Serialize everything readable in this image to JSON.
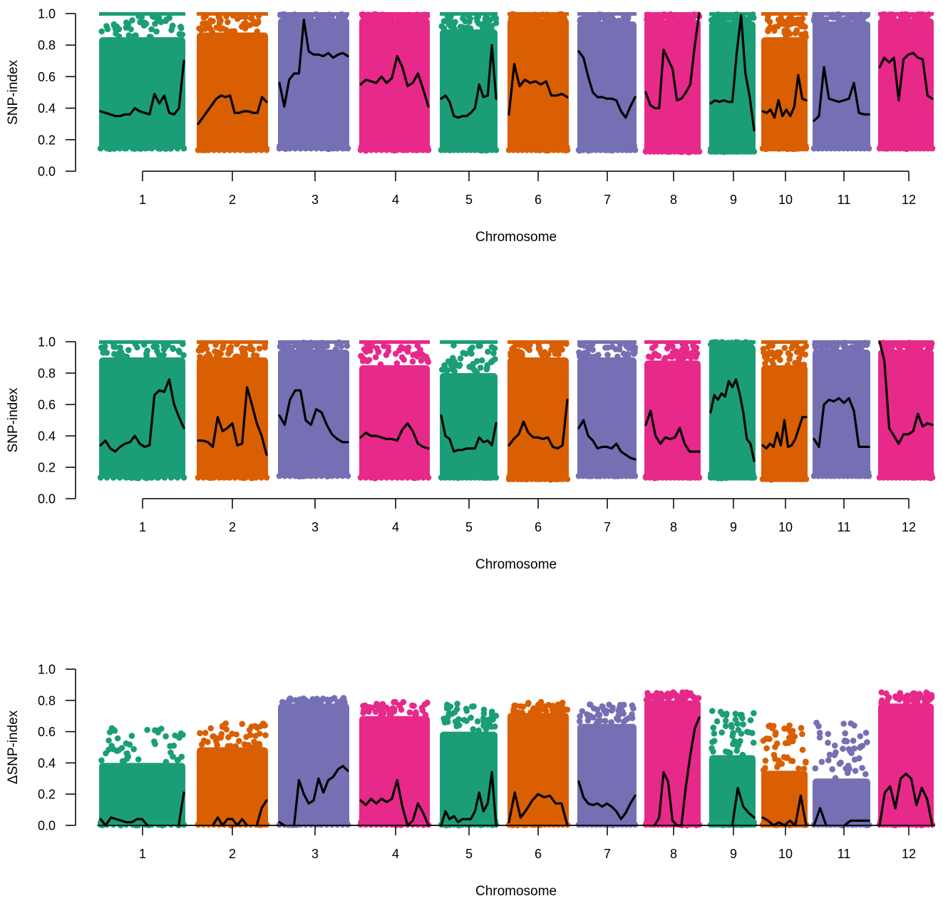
{
  "chart_data": [
    {
      "type": "scatter",
      "title": "",
      "xlabel": "Chromosome",
      "ylabel": "SNP-index",
      "ylim": [
        0,
        1
      ],
      "yticks": [
        "0.0",
        "0.2",
        "0.4",
        "0.6",
        "0.8",
        "1.0"
      ],
      "categories": [
        "1",
        "2",
        "3",
        "4",
        "5",
        "6",
        "7",
        "8",
        "9",
        "10",
        "11",
        "12"
      ],
      "colors": [
        "#1B9E77",
        "#D95F02",
        "#7570B3",
        "#E7298A"
      ],
      "grid": false,
      "legend": "none",
      "point_ranges": [
        {
          "chr": "1",
          "min": 0.14,
          "max": 1.0,
          "dense_top": 0.85
        },
        {
          "chr": "2",
          "min": 0.13,
          "max": 1.0,
          "dense_top": 0.88
        },
        {
          "chr": "3",
          "min": 0.14,
          "max": 1.0,
          "dense_top": 0.97
        },
        {
          "chr": "4",
          "min": 0.13,
          "max": 1.0,
          "dense_top": 0.97
        },
        {
          "chr": "5",
          "min": 0.13,
          "max": 1.0,
          "dense_top": 0.9
        },
        {
          "chr": "6",
          "min": 0.13,
          "max": 1.0,
          "dense_top": 0.97
        },
        {
          "chr": "7",
          "min": 0.13,
          "max": 1.0,
          "dense_top": 0.95
        },
        {
          "chr": "8",
          "min": 0.12,
          "max": 1.0,
          "dense_top": 0.96
        },
        {
          "chr": "9",
          "min": 0.12,
          "max": 1.0,
          "dense_top": 0.95
        },
        {
          "chr": "10",
          "min": 0.14,
          "max": 1.0,
          "dense_top": 0.85
        },
        {
          "chr": "11",
          "min": 0.14,
          "max": 1.0,
          "dense_top": 0.95
        },
        {
          "chr": "12",
          "min": 0.14,
          "max": 1.0,
          "dense_top": 0.97
        }
      ],
      "series": [
        {
          "chr": "1",
          "values": [
            0.38,
            0.37,
            0.36,
            0.35,
            0.35,
            0.36,
            0.36,
            0.4,
            0.38,
            0.37,
            0.36,
            0.49,
            0.43,
            0.48,
            0.37,
            0.36,
            0.4,
            0.7
          ]
        },
        {
          "chr": "2",
          "values": [
            0.3,
            0.34,
            0.38,
            0.42,
            0.46,
            0.48,
            0.47,
            0.48,
            0.37,
            0.37,
            0.38,
            0.38,
            0.37,
            0.37,
            0.47,
            0.44
          ]
        },
        {
          "chr": "3",
          "values": [
            0.56,
            0.41,
            0.58,
            0.62,
            0.62,
            0.96,
            0.76,
            0.74,
            0.74,
            0.73,
            0.75,
            0.72,
            0.74,
            0.75,
            0.73
          ]
        },
        {
          "chr": "4",
          "values": [
            0.55,
            0.58,
            0.57,
            0.56,
            0.6,
            0.56,
            0.59,
            0.73,
            0.66,
            0.54,
            0.56,
            0.62,
            0.52,
            0.41
          ]
        },
        {
          "chr": "5",
          "values": [
            0.46,
            0.48,
            0.44,
            0.35,
            0.34,
            0.35,
            0.35,
            0.37,
            0.4,
            0.55,
            0.47,
            0.48,
            0.8,
            0.46
          ]
        },
        {
          "chr": "6",
          "values": [
            0.36,
            0.68,
            0.54,
            0.58,
            0.56,
            0.57,
            0.55,
            0.57,
            0.48,
            0.48,
            0.49,
            0.47
          ]
        },
        {
          "chr": "7",
          "values": [
            0.76,
            0.72,
            0.6,
            0.5,
            0.47,
            0.47,
            0.46,
            0.46,
            0.45,
            0.38,
            0.34,
            0.41,
            0.47
          ]
        },
        {
          "chr": "8",
          "values": [
            0.5,
            0.42,
            0.4,
            0.4,
            0.77,
            0.71,
            0.65,
            0.45,
            0.46,
            0.5,
            0.55,
            0.8,
            1.0
          ]
        },
        {
          "chr": "9",
          "values": [
            0.43,
            0.45,
            0.44,
            0.45,
            0.44,
            0.44,
            0.75,
            0.99,
            0.62,
            0.47,
            0.26
          ]
        },
        {
          "chr": "10",
          "values": [
            0.38,
            0.37,
            0.39,
            0.34,
            0.45,
            0.35,
            0.39,
            0.35,
            0.41,
            0.61,
            0.46,
            0.45
          ]
        },
        {
          "chr": "11",
          "values": [
            0.32,
            0.35,
            0.66,
            0.46,
            0.45,
            0.44,
            0.45,
            0.46,
            0.56,
            0.37,
            0.36,
            0.36
          ]
        },
        {
          "chr": "12",
          "values": [
            0.66,
            0.72,
            0.69,
            0.72,
            0.45,
            0.71,
            0.74,
            0.75,
            0.72,
            0.71,
            0.48,
            0.46
          ]
        }
      ]
    },
    {
      "type": "scatter",
      "title": "",
      "xlabel": "Chromosome",
      "ylabel": "SNP-index",
      "ylim": [
        0,
        1
      ],
      "yticks": [
        "0.0",
        "0.2",
        "0.4",
        "0.6",
        "0.8",
        "1.0"
      ],
      "categories": [
        "1",
        "2",
        "3",
        "4",
        "5",
        "6",
        "7",
        "8",
        "9",
        "10",
        "11",
        "12"
      ],
      "colors": [
        "#1B9E77",
        "#D95F02",
        "#7570B3",
        "#E7298A"
      ],
      "grid": false,
      "legend": "none",
      "point_ranges": [
        {
          "chr": "1",
          "min": 0.13,
          "max": 1.0,
          "dense_top": 0.9
        },
        {
          "chr": "2",
          "min": 0.13,
          "max": 1.0,
          "dense_top": 0.9
        },
        {
          "chr": "3",
          "min": 0.14,
          "max": 1.0,
          "dense_top": 0.95
        },
        {
          "chr": "4",
          "min": 0.13,
          "max": 1.0,
          "dense_top": 0.85
        },
        {
          "chr": "5",
          "min": 0.13,
          "max": 1.0,
          "dense_top": 0.8
        },
        {
          "chr": "6",
          "min": 0.12,
          "max": 1.0,
          "dense_top": 0.9
        },
        {
          "chr": "7",
          "min": 0.14,
          "max": 1.0,
          "dense_top": 0.9
        },
        {
          "chr": "8",
          "min": 0.13,
          "max": 1.0,
          "dense_top": 0.88
        },
        {
          "chr": "9",
          "min": 0.13,
          "max": 1.0,
          "dense_top": 0.98
        },
        {
          "chr": "10",
          "min": 0.12,
          "max": 1.0,
          "dense_top": 0.85
        },
        {
          "chr": "11",
          "min": 0.14,
          "max": 1.0,
          "dense_top": 0.95
        },
        {
          "chr": "12",
          "min": 0.13,
          "max": 1.0,
          "dense_top": 0.95
        }
      ],
      "series": [
        {
          "chr": "1",
          "values": [
            0.34,
            0.37,
            0.32,
            0.3,
            0.33,
            0.35,
            0.36,
            0.4,
            0.35,
            0.33,
            0.34,
            0.66,
            0.69,
            0.68,
            0.76,
            0.6,
            0.52,
            0.45
          ]
        },
        {
          "chr": "2",
          "values": [
            0.37,
            0.37,
            0.36,
            0.33,
            0.52,
            0.43,
            0.45,
            0.48,
            0.34,
            0.35,
            0.71,
            0.6,
            0.48,
            0.4,
            0.28
          ]
        },
        {
          "chr": "3",
          "values": [
            0.53,
            0.47,
            0.63,
            0.69,
            0.69,
            0.5,
            0.47,
            0.57,
            0.55,
            0.47,
            0.41,
            0.38,
            0.36,
            0.36
          ]
        },
        {
          "chr": "4",
          "values": [
            0.39,
            0.42,
            0.4,
            0.4,
            0.39,
            0.38,
            0.38,
            0.37,
            0.44,
            0.48,
            0.43,
            0.35,
            0.33,
            0.32
          ]
        },
        {
          "chr": "5",
          "values": [
            0.53,
            0.4,
            0.38,
            0.3,
            0.31,
            0.31,
            0.32,
            0.32,
            0.32,
            0.39,
            0.36,
            0.37,
            0.34,
            0.48
          ]
        },
        {
          "chr": "6",
          "values": [
            0.34,
            0.38,
            0.41,
            0.49,
            0.42,
            0.39,
            0.39,
            0.38,
            0.39,
            0.33,
            0.32,
            0.34,
            0.63
          ]
        },
        {
          "chr": "7",
          "values": [
            0.45,
            0.5,
            0.4,
            0.37,
            0.32,
            0.33,
            0.33,
            0.32,
            0.35,
            0.3,
            0.28,
            0.26,
            0.25
          ]
        },
        {
          "chr": "8",
          "values": [
            0.47,
            0.56,
            0.4,
            0.35,
            0.39,
            0.38,
            0.39,
            0.45,
            0.35,
            0.3,
            0.3,
            0.3
          ]
        },
        {
          "chr": "9",
          "values": [
            0.55,
            0.66,
            0.63,
            0.67,
            0.65,
            0.75,
            0.71,
            0.76,
            0.67,
            0.55,
            0.38,
            0.35,
            0.24
          ]
        },
        {
          "chr": "10",
          "values": [
            0.34,
            0.32,
            0.35,
            0.33,
            0.42,
            0.34,
            0.5,
            0.33,
            0.34,
            0.38,
            0.45,
            0.52,
            0.52
          ]
        },
        {
          "chr": "11",
          "values": [
            0.38,
            0.33,
            0.6,
            0.63,
            0.62,
            0.64,
            0.61,
            0.64,
            0.56,
            0.33,
            0.33,
            0.33
          ]
        },
        {
          "chr": "12",
          "values": [
            1.0,
            0.88,
            0.45,
            0.4,
            0.35,
            0.41,
            0.41,
            0.43,
            0.54,
            0.46,
            0.48,
            0.47
          ]
        }
      ]
    },
    {
      "type": "scatter",
      "title": "",
      "xlabel": "Chromosome",
      "ylabel": "ΔSNP-index",
      "ylim": [
        0,
        1
      ],
      "yticks": [
        "0.0",
        "0.2",
        "0.4",
        "0.6",
        "0.8",
        "1.0"
      ],
      "categories": [
        "1",
        "2",
        "3",
        "4",
        "5",
        "6",
        "7",
        "8",
        "9",
        "10",
        "11",
        "12"
      ],
      "colors": [
        "#1B9E77",
        "#D95F02",
        "#7570B3",
        "#E7298A"
      ],
      "grid": false,
      "legend": "none",
      "point_ranges": [
        {
          "chr": "1",
          "min": 0.0,
          "max": 0.65,
          "dense_top": 0.4
        },
        {
          "chr": "2",
          "min": 0.0,
          "max": 0.67,
          "dense_top": 0.5
        },
        {
          "chr": "3",
          "min": 0.0,
          "max": 0.82,
          "dense_top": 0.78
        },
        {
          "chr": "4",
          "min": 0.0,
          "max": 0.8,
          "dense_top": 0.7
        },
        {
          "chr": "5",
          "min": 0.0,
          "max": 0.8,
          "dense_top": 0.6
        },
        {
          "chr": "6",
          "min": 0.0,
          "max": 0.8,
          "dense_top": 0.72
        },
        {
          "chr": "7",
          "min": 0.0,
          "max": 0.79,
          "dense_top": 0.65
        },
        {
          "chr": "8",
          "min": 0.0,
          "max": 0.86,
          "dense_top": 0.8
        },
        {
          "chr": "9",
          "min": 0.0,
          "max": 0.78,
          "dense_top": 0.45
        },
        {
          "chr": "10",
          "min": 0.0,
          "max": 0.68,
          "dense_top": 0.35
        },
        {
          "chr": "11",
          "min": 0.0,
          "max": 0.71,
          "dense_top": 0.3
        },
        {
          "chr": "12",
          "min": 0.0,
          "max": 0.86,
          "dense_top": 0.78
        }
      ],
      "series": [
        {
          "chr": "1",
          "values": [
            0.04,
            0.0,
            0.05,
            0.04,
            0.03,
            0.02,
            0.02,
            0.04,
            0.04,
            0.0,
            null,
            null,
            null,
            null,
            null,
            0.0,
            0.21
          ]
        },
        {
          "chr": "2",
          "values": [
            null,
            null,
            null,
            0.0,
            0.05,
            0.0,
            0.04,
            0.04,
            0.0,
            0.04,
            0.0,
            null,
            0.0,
            0.11,
            0.16
          ]
        },
        {
          "chr": "3",
          "values": [
            0.02,
            0.0,
            null,
            0.0,
            0.29,
            0.2,
            0.14,
            0.16,
            0.3,
            0.21,
            0.29,
            0.31,
            0.36,
            0.38,
            0.35
          ]
        },
        {
          "chr": "4",
          "values": [
            0.16,
            0.13,
            0.17,
            0.14,
            0.17,
            0.15,
            0.17,
            0.29,
            0.12,
            0.0,
            0.03,
            0.14,
            0.08,
            0.0
          ]
        },
        {
          "chr": "5",
          "values": [
            0.0,
            0.09,
            0.04,
            0.06,
            0.02,
            0.04,
            0.04,
            0.04,
            0.09,
            0.21,
            0.09,
            0.14,
            0.34,
            0.0
          ]
        },
        {
          "chr": "6",
          "values": [
            0.02,
            0.21,
            0.05,
            0.1,
            0.16,
            0.2,
            0.18,
            0.19,
            0.14,
            0.14,
            0.0
          ]
        },
        {
          "chr": "7",
          "values": [
            0.28,
            0.18,
            0.14,
            0.13,
            0.14,
            0.12,
            0.14,
            0.12,
            0.09,
            0.04,
            0.08,
            0.14,
            0.19
          ]
        },
        {
          "chr": "8",
          "values": [
            0.07,
            null,
            0.0,
            0.05,
            0.34,
            0.28,
            0.03,
            0.0,
            0.0,
            0.25,
            0.45,
            0.62,
            0.69
          ]
        },
        {
          "chr": "9",
          "values": [
            null,
            null,
            null,
            null,
            0.0,
            0.24,
            0.12,
            0.08,
            0.05
          ]
        },
        {
          "chr": "10",
          "values": [
            0.05,
            0.03,
            0.0,
            0.02,
            0.0,
            0.03,
            0.0,
            0.19,
            0.0
          ]
        },
        {
          "chr": "11",
          "values": [
            0.0,
            0.11,
            0.0,
            null,
            null,
            0.0,
            0.03,
            0.03,
            0.03,
            0.03
          ]
        },
        {
          "chr": "12",
          "values": [
            0.0,
            0.21,
            0.25,
            0.11,
            0.3,
            0.33,
            0.3,
            0.13,
            0.24,
            0.17,
            0.0
          ]
        }
      ]
    }
  ]
}
